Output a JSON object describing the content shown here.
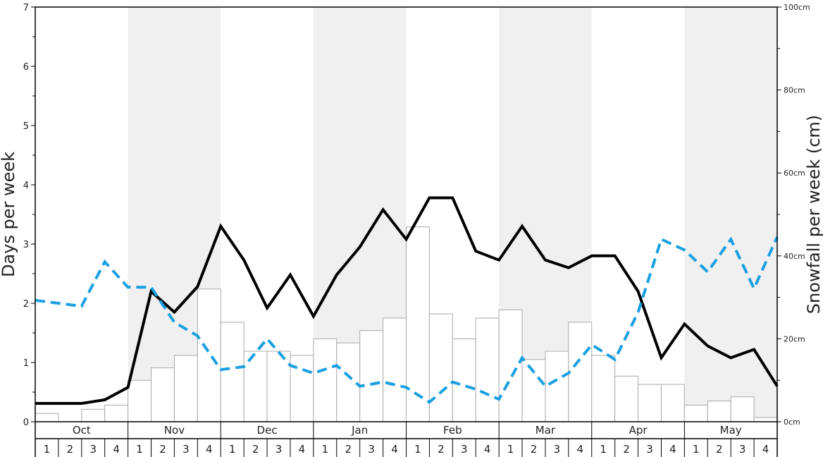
{
  "chart_data": {
    "type": "bar+line",
    "ylabel_left": "Days per week",
    "ylabel_right": "Snowfall per week (cm)",
    "left_axis": {
      "ylim": [
        0,
        7
      ],
      "ticks": [
        "0",
        "1",
        "2",
        "3",
        "4",
        "5",
        "6",
        "7"
      ]
    },
    "right_axis": {
      "ylim": [
        0,
        100
      ],
      "ticks": [
        "0cm",
        "20cm",
        "40cm",
        "60cm",
        "80cm",
        "100cm"
      ]
    },
    "months": [
      "Oct",
      "Nov",
      "Dec",
      "Jan",
      "Feb",
      "Mar",
      "Apr",
      "May"
    ],
    "weeks": [
      "1",
      "2",
      "3",
      "4"
    ],
    "snowfall_cm": [
      2,
      0,
      3,
      4,
      10,
      13,
      16,
      32,
      24,
      17,
      17,
      16,
      20,
      19,
      22,
      25,
      47,
      26,
      20,
      25,
      27,
      15,
      17,
      24,
      16,
      11,
      9,
      9,
      4,
      5,
      6,
      1
    ],
    "series": [
      {
        "name": "black-line",
        "color": "#000000",
        "style": "solid",
        "values": [
          0.31,
          0.31,
          0.31,
          0.37,
          0.58,
          2.2,
          1.85,
          2.28,
          3.3,
          2.73,
          1.92,
          2.48,
          1.78,
          2.48,
          2.95,
          3.58,
          3.08,
          3.78,
          3.78,
          2.88,
          2.73,
          3.3,
          2.73,
          2.6,
          2.8,
          2.8,
          2.2,
          1.08,
          1.65,
          1.28,
          1.08,
          1.22,
          0.6
        ]
      },
      {
        "name": "blue-dashed-line",
        "color": "#1a9fe0",
        "style": "dashed",
        "values": [
          2.05,
          2.0,
          1.95,
          2.7,
          2.27,
          2.27,
          1.68,
          1.45,
          0.88,
          0.93,
          1.4,
          0.95,
          0.82,
          0.95,
          0.6,
          0.67,
          0.58,
          0.33,
          0.67,
          0.55,
          0.38,
          1.08,
          0.6,
          0.82,
          1.3,
          1.05,
          1.85,
          3.08,
          2.9,
          2.53,
          3.08,
          2.25,
          3.12
        ]
      }
    ],
    "colors": {
      "shade": "#f0f0f0",
      "bar_fill": "#ffffff",
      "bar_stroke": "#aaaaaa",
      "axis": "#000000"
    },
    "grid": false,
    "legend": "none"
  }
}
